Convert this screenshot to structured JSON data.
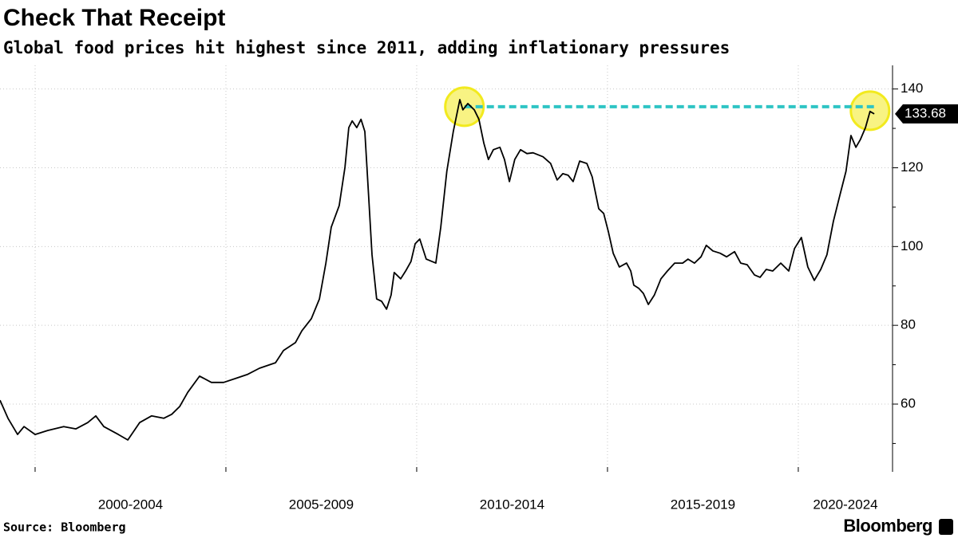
{
  "chart_data": {
    "type": "line",
    "title": "Check That Receipt",
    "subtitle": "Global food prices hit highest since 2011, adding inflationary pressures",
    "source": "Source: Bloomberg",
    "brand": "Bloomberg",
    "xlim": [
      1999.08,
      2022.47
    ],
    "xticks": [
      {
        "value": 2000,
        "label": "2000-2004"
      },
      {
        "value": 2005,
        "label": "2005-2009"
      },
      {
        "value": 2010,
        "label": "2010-2014"
      },
      {
        "value": 2015,
        "label": "2015-2019"
      },
      {
        "value": 2020,
        "label": "2020-2024"
      }
    ],
    "ylim": [
      42.8,
      146
    ],
    "yticks": [
      60,
      80,
      100,
      120,
      140
    ],
    "yminor": [
      50,
      70,
      90,
      110,
      130
    ],
    "grid": true,
    "x": [
      1999.08,
      1999.29,
      1999.54,
      1999.71,
      2000.0,
      2000.33,
      2000.75,
      2001.07,
      2001.38,
      2001.59,
      2001.8,
      2002.18,
      2002.43,
      2002.74,
      2003.05,
      2003.37,
      2003.58,
      2003.79,
      2004.0,
      2004.31,
      2004.62,
      2004.94,
      2005.25,
      2005.56,
      2005.88,
      2006.3,
      2006.51,
      2006.82,
      2006.99,
      2007.24,
      2007.45,
      2007.62,
      2007.76,
      2007.97,
      2008.12,
      2008.22,
      2008.31,
      2008.43,
      2008.54,
      2008.64,
      2008.74,
      2008.83,
      2008.95,
      2009.08,
      2009.21,
      2009.33,
      2009.41,
      2009.58,
      2009.71,
      2009.85,
      2009.96,
      2010.08,
      2010.25,
      2010.5,
      2010.63,
      2010.79,
      2010.96,
      2011.13,
      2011.21,
      2011.34,
      2011.51,
      2011.63,
      2011.76,
      2011.88,
      2012.01,
      2012.18,
      2012.3,
      2012.43,
      2012.57,
      2012.72,
      2012.89,
      2013.05,
      2013.31,
      2013.51,
      2013.68,
      2013.83,
      2013.97,
      2014.1,
      2014.27,
      2014.46,
      2014.6,
      2014.77,
      2014.9,
      2015.02,
      2015.15,
      2015.31,
      2015.5,
      2015.61,
      2015.69,
      2015.82,
      2015.94,
      2016.07,
      2016.23,
      2016.4,
      2016.57,
      2016.76,
      2016.97,
      2017.11,
      2017.28,
      2017.45,
      2017.59,
      2017.76,
      2017.95,
      2018.12,
      2018.33,
      2018.49,
      2018.66,
      2018.85,
      2019.0,
      2019.16,
      2019.33,
      2019.54,
      2019.75,
      2019.9,
      2020.08,
      2020.25,
      2020.42,
      2020.59,
      2020.75,
      2020.92,
      2021.09,
      2021.25,
      2021.38,
      2021.51,
      2021.63,
      2021.76,
      2021.88,
      2021.99
    ],
    "series": [
      {
        "color": "#000000",
        "values": [
          61.0,
          56.4,
          52.3,
          54.3,
          52.3,
          53.3,
          54.3,
          53.7,
          55.3,
          57.0,
          54.3,
          52.3,
          50.9,
          55.3,
          57.0,
          56.4,
          57.4,
          59.4,
          63.0,
          67.1,
          65.5,
          65.5,
          66.5,
          67.5,
          69.1,
          70.5,
          73.6,
          75.6,
          78.6,
          81.7,
          86.7,
          95.8,
          104.9,
          110.4,
          120.1,
          130.2,
          131.9,
          130.2,
          132.3,
          129.2,
          113.0,
          97.9,
          86.7,
          86.1,
          84.1,
          87.7,
          93.4,
          91.8,
          93.8,
          96.2,
          100.7,
          101.9,
          96.8,
          95.8,
          104.9,
          119.1,
          129.2,
          137.3,
          134.7,
          136.3,
          134.7,
          132.3,
          126.2,
          122.1,
          124.6,
          125.2,
          122.1,
          116.5,
          122.1,
          124.6,
          123.6,
          123.8,
          122.8,
          121.1,
          116.9,
          118.5,
          118.1,
          116.5,
          121.7,
          121.1,
          117.7,
          109.6,
          108.4,
          103.9,
          98.3,
          94.8,
          95.8,
          93.8,
          90.2,
          89.4,
          88.1,
          85.3,
          87.7,
          91.8,
          93.8,
          95.8,
          95.8,
          96.8,
          95.8,
          97.4,
          100.3,
          98.9,
          98.3,
          97.4,
          98.7,
          95.8,
          95.4,
          92.8,
          92.2,
          94.2,
          93.8,
          95.8,
          93.8,
          99.5,
          102.3,
          94.8,
          91.4,
          94.2,
          97.9,
          106.4,
          113.0,
          119.1,
          128.2,
          125.2,
          127.2,
          130.2,
          134.3,
          133.68
        ]
      }
    ],
    "reference_line": {
      "value": 135.5,
      "from": 2011.25,
      "to": 2022.0,
      "color": "#2ec4c4"
    },
    "highlights": [
      {
        "x": 2011.25,
        "y": 135.5
      },
      {
        "x": 2021.88,
        "y": 134.5
      }
    ],
    "highlight_color": "#f2ea1e"
  }
}
